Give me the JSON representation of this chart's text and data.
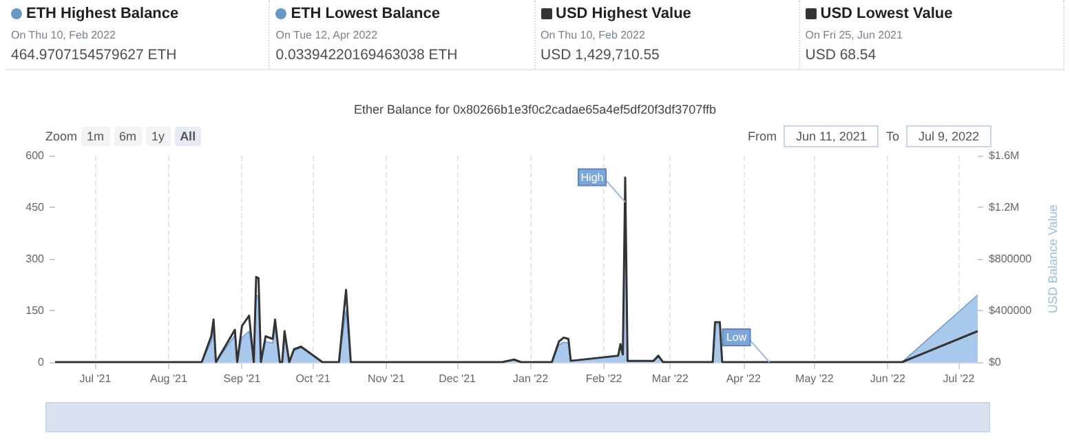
{
  "chart_data": {
    "type": "line",
    "title": "Ether Balance for 0x80266b1e3f0c2cadae65a4ef5df20f3df3707ffb",
    "y2label": "USD Balance Value",
    "x": [
      "2021-06-14",
      "2021-08-15",
      "2021-08-19",
      "2021-08-20",
      "2021-08-21",
      "2021-08-29",
      "2021-08-30",
      "2021-09-01",
      "2021-09-04",
      "2021-09-06",
      "2021-09-07",
      "2021-09-08",
      "2021-09-09",
      "2021-09-11",
      "2021-09-14",
      "2021-09-15",
      "2021-09-17",
      "2021-09-18",
      "2021-09-19",
      "2021-09-21",
      "2021-09-23",
      "2021-09-26",
      "2021-10-05",
      "2021-10-12",
      "2021-10-15",
      "2021-10-17",
      "2021-12-20",
      "2021-12-25",
      "2021-12-28",
      "2022-01-10",
      "2022-01-13",
      "2022-01-15",
      "2022-01-17",
      "2022-01-18",
      "2022-02-07",
      "2022-02-08",
      "2022-02-09",
      "2022-02-10",
      "2022-02-11",
      "2022-02-22",
      "2022-02-24",
      "2022-02-26",
      "2022-03-19",
      "2022-03-20",
      "2022-03-22",
      "2022-03-23",
      "2022-04-12",
      "2022-06-07",
      "2022-07-09"
    ],
    "series": [
      {
        "type": "area",
        "color": "#a9c9ec",
        "values": [
          0,
          0,
          60,
          100,
          0,
          78,
          0,
          72,
          90,
          0,
          195,
          190,
          0,
          60,
          55,
          100,
          0,
          0,
          70,
          0,
          33,
          42,
          0,
          0,
          150,
          0,
          0,
          6,
          0,
          0,
          50,
          58,
          55,
          3,
          17,
          45,
          20,
          465,
          3,
          3,
          16,
          1,
          1,
          110,
          110,
          0,
          0,
          0,
          195
        ]
      },
      {
        "type": "line",
        "axis": "y2",
        "color": "#333333",
        "values": [
          0,
          0,
          200000,
          330000,
          0,
          250000,
          0,
          280000,
          360000,
          0,
          660000,
          650000,
          0,
          200000,
          180000,
          330000,
          0,
          0,
          240000,
          0,
          100000,
          120000,
          0,
          0,
          560000,
          0,
          0,
          20000,
          0,
          0,
          160000,
          190000,
          180000,
          10000,
          50000,
          140000,
          60000,
          1430000,
          10000,
          10000,
          50000,
          0,
          0,
          310000,
          310000,
          0,
          0,
          0,
          240000
        ]
      }
    ],
    "xlim": [
      "2021-06-14",
      "2022-07-09"
    ],
    "xticks": [
      {
        "value": "2021-07-01",
        "label": "Jul '21"
      },
      {
        "value": "2021-08-01",
        "label": "Aug '21"
      },
      {
        "value": "2021-09-01",
        "label": "Sep '21"
      },
      {
        "value": "2021-10-01",
        "label": "Oct '21"
      },
      {
        "value": "2021-11-01",
        "label": "Nov '21"
      },
      {
        "value": "2021-12-01",
        "label": "Dec '21"
      },
      {
        "value": "2022-01-01",
        "label": "Jan '22"
      },
      {
        "value": "2022-02-01",
        "label": "Feb '22"
      },
      {
        "value": "2022-03-01",
        "label": "Mar '22"
      },
      {
        "value": "2022-04-01",
        "label": "Apr '22"
      },
      {
        "value": "2022-05-01",
        "label": "May '22"
      },
      {
        "value": "2022-06-01",
        "label": "Jun '22"
      },
      {
        "value": "2022-07-01",
        "label": "Jul '22"
      }
    ],
    "ylim": [
      0,
      600
    ],
    "yticks": [
      0,
      150,
      300,
      450,
      600
    ],
    "y2lim": [
      0,
      1600000
    ],
    "y2ticks": [
      {
        "value": 0,
        "label": "$0"
      },
      {
        "value": 400000,
        "label": "$400000"
      },
      {
        "value": 800000,
        "label": "$800000"
      },
      {
        "value": 1200000,
        "label": "$1.2M"
      },
      {
        "value": 1600000,
        "label": "$1.6M"
      }
    ],
    "grid": "x",
    "marker": "none",
    "annotations": [
      "ETH Highest Balance",
      "On Thu 10, Feb 2022",
      "464.9707154579627 ETH",
      "ETH Lowest Balance",
      "On Tue 12, Apr 2022",
      "0.03394220169463038 ETH",
      "USD Highest Value",
      "On Thu 10, Feb 2022",
      "USD 1,429,710.55",
      "USD Lowest Value",
      "On Fri 25, Jun 2021",
      "USD 68.54",
      "Zoom",
      "1m",
      "6m",
      "1y",
      "All",
      "From",
      "Jun 11, 2021",
      "To",
      "Jul 9, 2022",
      {
        "text": "High",
        "x": "2022-02-10",
        "y": 465
      },
      {
        "text": "Low",
        "x": "2022-04-12",
        "y": 0
      }
    ]
  }
}
